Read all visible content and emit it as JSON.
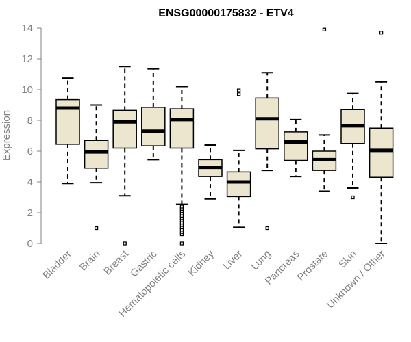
{
  "chart_data": {
    "type": "boxplot",
    "title": "ENSG00000175832 - ETV4",
    "xlabel": "",
    "ylabel": "Expression",
    "ylim": [
      0,
      14
    ],
    "yticks": [
      0,
      2,
      4,
      6,
      8,
      10,
      12,
      14
    ],
    "grid": false,
    "colors": {
      "box_fill": "#ede6cf",
      "box_stroke": "#000000",
      "median": "#000000",
      "axis": "#808080",
      "text": "#808080"
    },
    "categories": [
      "Bladder",
      "Brain",
      "Breast",
      "Gastric",
      "Hematopoietic cells",
      "Kidney",
      "Liver",
      "Lung",
      "Pancreas",
      "Prostate",
      "Skin",
      "Unknown / Other"
    ],
    "boxes": [
      {
        "category": "Bladder",
        "whisker_low": 3.9,
        "q1": 6.45,
        "median": 8.8,
        "q3": 9.35,
        "whisker_high": 10.75,
        "outliers": []
      },
      {
        "category": "Brain",
        "whisker_low": 3.95,
        "q1": 4.9,
        "median": 5.95,
        "q3": 6.7,
        "whisker_high": 9.0,
        "outliers": [
          1.0
        ]
      },
      {
        "category": "Breast",
        "whisker_low": 3.1,
        "q1": 6.2,
        "median": 7.9,
        "q3": 8.65,
        "whisker_high": 11.5,
        "outliers": [
          0.0
        ]
      },
      {
        "category": "Gastric",
        "whisker_low": 5.45,
        "q1": 6.35,
        "median": 7.3,
        "q3": 8.85,
        "whisker_high": 11.35,
        "outliers": []
      },
      {
        "category": "Hematopoietic cells",
        "whisker_low": 2.55,
        "q1": 6.2,
        "median": 8.05,
        "q3": 8.75,
        "whisker_high": 10.2,
        "outliers": [
          0.0,
          0.6,
          0.75,
          0.9,
          1.05,
          1.2,
          1.35,
          1.5,
          1.65,
          1.8,
          1.95,
          2.1,
          2.25,
          2.4
        ]
      },
      {
        "category": "Kidney",
        "whisker_low": 2.9,
        "q1": 4.35,
        "median": 4.95,
        "q3": 5.45,
        "whisker_high": 6.4,
        "outliers": []
      },
      {
        "category": "Liver",
        "whisker_low": 1.05,
        "q1": 3.05,
        "median": 4.0,
        "q3": 4.65,
        "whisker_high": 6.05,
        "outliers": [
          9.7,
          9.95
        ]
      },
      {
        "category": "Lung",
        "whisker_low": 4.75,
        "q1": 6.15,
        "median": 8.1,
        "q3": 9.45,
        "whisker_high": 11.1,
        "outliers": [
          1.0
        ]
      },
      {
        "category": "Pancreas",
        "whisker_low": 4.35,
        "q1": 5.4,
        "median": 6.6,
        "q3": 7.25,
        "whisker_high": 8.05,
        "outliers": []
      },
      {
        "category": "Prostate",
        "whisker_low": 3.4,
        "q1": 4.75,
        "median": 5.45,
        "q3": 6.0,
        "whisker_high": 7.05,
        "outliers": [
          13.9
        ]
      },
      {
        "category": "Skin",
        "whisker_low": 3.6,
        "q1": 6.5,
        "median": 7.65,
        "q3": 8.7,
        "whisker_high": 9.75,
        "outliers": [
          3.0
        ]
      },
      {
        "category": "Unknown / Other",
        "whisker_low": 0.0,
        "q1": 4.3,
        "median": 6.05,
        "q3": 7.5,
        "whisker_high": 10.5,
        "outliers": [
          13.7
        ]
      }
    ]
  }
}
